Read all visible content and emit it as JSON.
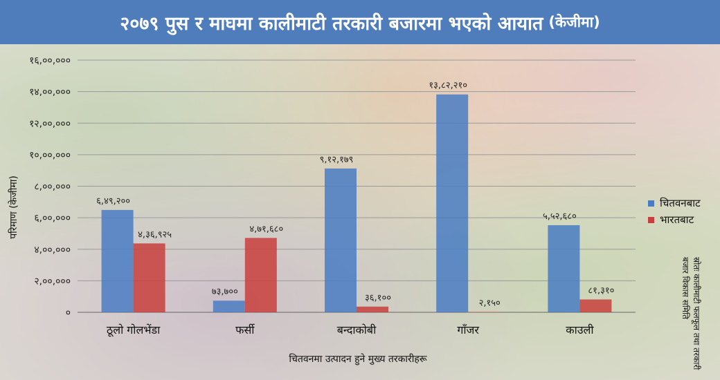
{
  "header": {
    "title": "२०७९ पुस र माघमा कालीमाटी तरकारी बजारमा भएको आयात",
    "unit": "(केजीमा)"
  },
  "source": "स्रोतः कालीमाटी फलफूल तथा तरकारी बजार विकास समिति",
  "chart_data": {
    "type": "bar",
    "title": "२०७९ पुस र माघमा कालीमाटी तरकारी बजारमा भएको आयात (केजीमा)",
    "xlabel": "चितवनमा उत्पादन हुने मुख्य तरकारीहरू",
    "ylabel": "परिमाण (केजीमा)",
    "ylim": [
      0,
      1600000
    ],
    "yticks": [
      0,
      200000,
      400000,
      600000,
      800000,
      1000000,
      1200000,
      1400000,
      1600000
    ],
    "ytick_labels": [
      "०",
      "२,००,०००",
      "४,००,०००",
      "६,००,०००",
      "८,००,०००",
      "१०,००,०००",
      "१२,००,०००",
      "१४,००,०००",
      "१६,००,०००"
    ],
    "categories": [
      "ठूलो गोलभेंडा",
      "फर्सी",
      "बन्दाकोबी",
      "गाँजर",
      "काउली"
    ],
    "series": [
      {
        "name": "चितवनबाट",
        "color": "#4a7cc3",
        "values": [
          649200,
          73700,
          912179,
          1382210,
          552680
        ],
        "labels": [
          "६,४९,२००",
          "७३,७००",
          "९,१२,१७९",
          "१३,८२,२१०",
          "५,५२,६८०"
        ]
      },
      {
        "name": "भारतबाट",
        "color": "#c8403c",
        "values": [
          436925,
          471680,
          36100,
          2150,
          81310
        ],
        "labels": [
          "४,३६,९२५",
          "४,७१,६८०",
          "३६,१००",
          "२,१५०",
          "८१,३१०"
        ]
      }
    ],
    "grid": true,
    "legend": "right"
  }
}
